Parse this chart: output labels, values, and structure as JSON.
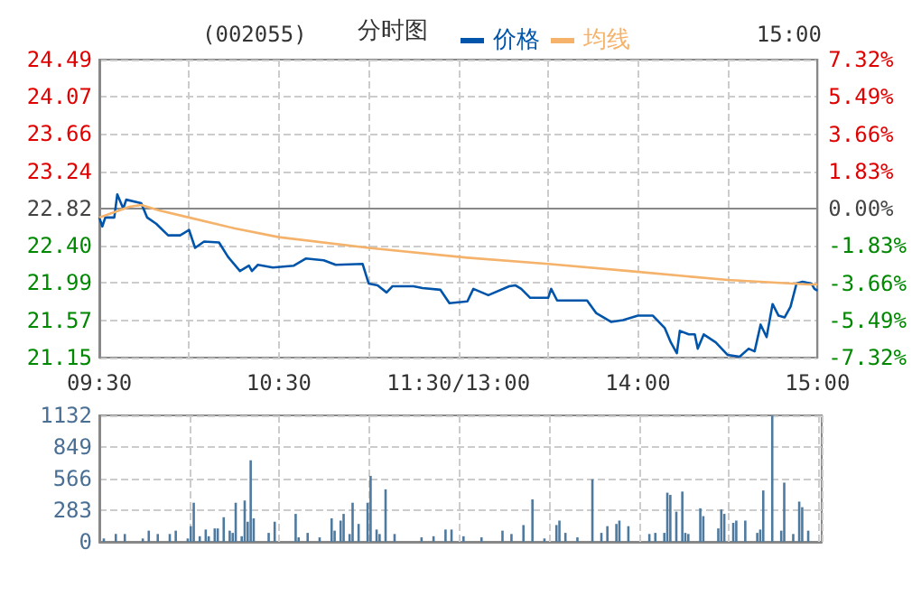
{
  "chart_data": [
    {
      "type": "line",
      "title": "分时图",
      "annotations": [
        "(002055)",
        "15:00"
      ],
      "legend": "top",
      "grid": true,
      "line_style": "solid",
      "marker": "none",
      "categories": [
        "09:30",
        null,
        null,
        null,
        null,
        null,
        null,
        null,
        null,
        null,
        null,
        null,
        null,
        null,
        null,
        null,
        null,
        null,
        null,
        null,
        null,
        null,
        null,
        null,
        null,
        null,
        null,
        null,
        null,
        null,
        null,
        null,
        null,
        null,
        null,
        null,
        null,
        null,
        null,
        null,
        null,
        null,
        null,
        null,
        null,
        null,
        null,
        null,
        null,
        null,
        null,
        null,
        null,
        null,
        null,
        null,
        null,
        null,
        null,
        null,
        "10:30",
        null,
        null,
        null,
        null,
        null,
        null,
        null,
        null,
        null,
        null,
        null,
        null,
        null,
        null,
        null,
        null,
        null,
        null,
        null,
        null,
        null,
        null,
        null,
        null,
        null,
        null,
        null,
        null,
        null,
        null,
        null,
        null,
        null,
        null,
        null,
        null,
        null,
        null,
        null,
        null,
        null,
        null,
        null,
        null,
        null,
        null,
        null,
        null,
        null,
        null,
        null,
        null,
        null,
        null,
        null,
        null,
        null,
        null,
        null,
        "11:30/13:00",
        null,
        null,
        null,
        null,
        null,
        null,
        null,
        null,
        null,
        null,
        null,
        null,
        null,
        null,
        null,
        null,
        null,
        null,
        null,
        null,
        null,
        null,
        null,
        null,
        null,
        null,
        null,
        null,
        null,
        null,
        null,
        null,
        null,
        null,
        null,
        null,
        null,
        null,
        null,
        null,
        null,
        null,
        null,
        null,
        null,
        null,
        null,
        null,
        null,
        null,
        null,
        null,
        null,
        null,
        null,
        null,
        null,
        null,
        null,
        "14:00",
        null,
        null,
        null,
        null,
        null,
        null,
        null,
        null,
        null,
        null,
        null,
        null,
        null,
        null,
        null,
        null,
        null,
        null,
        null,
        null,
        null,
        null,
        null,
        null,
        null,
        null,
        null,
        null,
        null,
        null,
        null,
        null,
        null,
        null,
        null,
        null,
        null,
        null,
        null,
        null,
        null,
        null,
        null,
        null,
        null,
        null,
        null,
        null,
        null,
        null,
        null,
        null,
        null,
        null,
        null,
        null,
        null,
        null,
        null,
        "15:00"
      ],
      "ylim": [
        21.15,
        24.49
      ],
      "yticks": [
        21.15,
        21.57,
        21.99,
        {
          "value": 22.4,
          "label": "22.40"
        },
        22.82,
        23.24,
        23.66,
        24.07,
        24.49
      ],
      "y2lim": [
        -7.32,
        7.32
      ],
      "y2ticks": [
        {
          "value": -7.32,
          "label": "-7.32%"
        },
        {
          "value": -5.49,
          "label": "-5.49%"
        },
        {
          "value": -3.66,
          "label": "-3.66%"
        },
        {
          "value": -1.83,
          "label": "-1.83%"
        },
        {
          "value": 0,
          "label": "0.00%"
        },
        {
          "value": 1.83,
          "label": "1.83%"
        },
        {
          "value": 3.66,
          "label": "3.66%"
        },
        {
          "value": 5.49,
          "label": "5.49%"
        },
        {
          "value": 7.32,
          "label": "7.32%"
        }
      ],
      "series": [
        {
          "name": "价格",
          "color": "#0055aa",
          "values": [
            22.72,
            22.62,
            22.72,
            null,
            null,
            22.72,
            22.98,
            null,
            22.82,
            22.92,
            null,
            null,
            null,
            null,
            22.88,
            null,
            22.72,
            null,
            null,
            22.65,
            null,
            null,
            null,
            22.52,
            null,
            null,
            null,
            22.52,
            null,
            null,
            22.58,
            null,
            22.38,
            null,
            null,
            22.45,
            null,
            null,
            null,
            null,
            22.44,
            null,
            null,
            22.28,
            null,
            null,
            null,
            22.12,
            null,
            null,
            22.18,
            22.12,
            null,
            22.19,
            null,
            null,
            null,
            null,
            22.16,
            null,
            null,
            null,
            null,
            null,
            null,
            22.18,
            null,
            null,
            null,
            22.26,
            null,
            null,
            null,
            null,
            null,
            22.24,
            null,
            null,
            null,
            22.19,
            null,
            null,
            null,
            null,
            null,
            null,
            null,
            null,
            22.2,
            null,
            21.98,
            null,
            null,
            21.96,
            null,
            null,
            21.88,
            null,
            21.95,
            null,
            null,
            null,
            null,
            null,
            null,
            21.95,
            null,
            null,
            21.93,
            null,
            null,
            null,
            null,
            null,
            21.91,
            null,
            null,
            21.76,
            null,
            null,
            null,
            null,
            null,
            21.78,
            null,
            21.92,
            null,
            null,
            null,
            null,
            21.85,
            null,
            null,
            null,
            null,
            null,
            null,
            21.95,
            null,
            21.96,
            null,
            21.92,
            null,
            null,
            21.82,
            null,
            null,
            null,
            null,
            null,
            21.82,
            21.92,
            null,
            21.79,
            null,
            null,
            null,
            null,
            null,
            null,
            null,
            null,
            null,
            21.79,
            null,
            null,
            21.65,
            null,
            null,
            null,
            null,
            21.55,
            null,
            null,
            null,
            21.57,
            null,
            null,
            null,
            null,
            21.62,
            null,
            null,
            null,
            null,
            21.62,
            null,
            null,
            null,
            21.48,
            null,
            21.32,
            null,
            21.2,
            21.45,
            null,
            null,
            21.41,
            null,
            21.41,
            21.25,
            null,
            21.41,
            null,
            null,
            null,
            21.32,
            null,
            null,
            null,
            21.18,
            null,
            null,
            null,
            21.16,
            null,
            null,
            21.25,
            null,
            21.22,
            null,
            21.52,
            null,
            21.38,
            null,
            21.75,
            null,
            21.62,
            null,
            21.6,
            null,
            21.72,
            null,
            21.98,
            null,
            22.0,
            null,
            null,
            21.98,
            21.92,
            21.9
          ]
        },
        {
          "name": "均线",
          "color": "#f5b26b",
          "values": [
            22.72,
            null,
            null,
            null,
            null,
            22.78,
            null,
            null,
            null,
            null,
            22.84,
            null,
            null,
            null,
            22.86,
            null,
            null,
            null,
            null,
            null,
            22.8,
            null,
            null,
            null,
            null,
            null,
            null,
            null,
            null,
            null,
            22.72,
            null,
            null,
            null,
            null,
            null,
            null,
            null,
            null,
            null,
            null,
            null,
            null,
            null,
            null,
            22.6,
            null,
            null,
            null,
            null,
            null,
            null,
            null,
            null,
            null,
            null,
            null,
            null,
            null,
            null,
            22.5,
            null,
            null,
            null,
            null,
            null,
            null,
            null,
            null,
            null,
            null,
            null,
            null,
            null,
            null,
            null,
            null,
            null,
            null,
            null,
            null,
            null,
            null,
            null,
            null,
            null,
            null,
            null,
            null,
            null,
            22.38,
            null,
            null,
            null,
            null,
            null,
            null,
            null,
            null,
            null,
            null,
            null,
            null,
            null,
            null,
            null,
            null,
            null,
            null,
            null,
            null,
            null,
            null,
            null,
            null,
            null,
            null,
            null,
            null,
            null,
            null,
            null,
            null,
            22.27,
            null,
            null,
            null,
            null,
            null,
            null,
            null,
            null,
            null,
            null,
            null,
            null,
            null,
            null,
            null,
            null,
            null,
            null,
            null,
            null,
            null,
            null,
            null,
            null,
            null,
            null,
            22.2,
            null,
            null,
            null,
            null,
            null,
            null,
            null,
            null,
            null,
            null,
            null,
            null,
            null,
            null,
            null,
            null,
            null,
            null,
            null,
            null,
            null,
            null,
            null,
            null,
            null,
            null,
            22.12,
            null,
            null,
            null,
            null,
            null,
            null,
            null,
            null,
            null,
            null,
            null,
            null,
            null,
            null,
            null,
            null,
            null,
            null,
            null,
            null,
            null,
            null,
            null,
            null,
            null,
            null,
            null,
            null,
            null,
            null,
            null,
            null,
            22.02,
            null,
            null,
            null,
            null,
            null,
            null,
            null,
            null,
            null,
            null,
            null,
            null,
            null,
            null,
            null,
            null,
            null,
            null,
            null,
            null,
            null,
            null,
            null,
            null,
            null,
            null,
            21.97,
            null,
            null,
            21.97
          ]
        }
      ]
    },
    {
      "type": "bar",
      "grid": true,
      "tick_labels": "y",
      "color": "#4f7a9f",
      "categories": [
        null,
        null,
        null,
        null,
        null,
        null,
        null,
        null,
        null,
        null,
        null,
        null,
        null,
        null,
        null,
        null,
        null,
        null,
        null,
        null,
        null,
        null,
        null,
        null,
        null,
        null,
        null,
        null,
        null,
        null,
        null,
        null,
        null,
        null,
        null,
        null,
        null,
        null,
        null,
        null,
        null,
        null,
        null,
        null,
        null,
        null,
        null,
        null,
        null,
        null,
        null,
        null,
        null,
        null,
        null,
        null,
        null,
        null,
        null,
        null,
        null,
        null,
        null,
        null,
        null,
        null,
        null,
        null,
        null,
        null,
        null,
        null,
        null,
        null,
        null,
        null,
        null,
        null,
        null,
        null,
        null,
        null,
        null,
        null,
        null,
        null,
        null,
        null,
        null,
        null,
        null,
        null,
        null,
        null,
        null,
        null,
        null,
        null,
        null,
        null,
        null,
        null,
        null,
        null,
        null,
        null,
        null,
        null,
        null,
        null,
        null,
        null,
        null,
        null,
        null,
        null,
        null,
        null,
        null,
        null,
        null,
        null,
        null,
        null,
        null,
        null,
        null,
        null,
        null,
        null,
        null,
        null,
        null,
        null,
        null,
        null,
        null,
        null,
        null,
        null,
        null,
        null,
        null,
        null,
        null,
        null,
        null,
        null,
        null,
        null,
        null,
        null,
        null,
        null,
        null,
        null,
        null,
        null,
        null,
        null,
        null,
        null,
        null,
        null,
        null,
        null,
        null,
        null,
        null,
        null,
        null,
        null,
        null,
        null,
        null,
        null,
        null,
        null,
        null,
        null,
        null,
        null,
        null,
        null,
        null,
        null,
        null,
        null,
        null,
        null,
        null,
        null,
        null,
        null,
        null,
        null,
        null,
        null,
        null,
        null,
        null,
        null,
        null,
        null,
        null,
        null,
        null,
        null,
        null,
        null,
        null,
        null,
        null,
        null,
        null,
        null,
        null,
        null,
        null,
        null,
        null,
        null,
        null,
        null,
        null,
        null,
        null,
        null,
        null,
        null,
        null,
        null,
        null,
        null,
        null,
        null,
        null,
        null,
        null,
        null,
        null
      ],
      "ylim": [
        0,
        1132
      ],
      "yticks": [
        0,
        283,
        566,
        849,
        1132
      ],
      "values": [
        null,
        30,
        null,
        null,
        null,
        70,
        null,
        null,
        70,
        null,
        null,
        null,
        null,
        null,
        30,
        null,
        100,
        null,
        null,
        70,
        null,
        null,
        null,
        70,
        null,
        100,
        null,
        null,
        null,
        30,
        140,
        350,
        null,
        50,
        null,
        110,
        50,
        null,
        120,
        120,
        null,
        220,
        null,
        100,
        80,
        350,
        null,
        50,
        370,
        180,
        730,
        210,
        null,
        null,
        null,
        null,
        80,
        null,
        180,
        null,
        null,
        null,
        null,
        null,
        null,
        250,
        40,
        null,
        null,
        80,
        null,
        null,
        null,
        40,
        null,
        null,
        null,
        210,
        100,
        null,
        190,
        250,
        null,
        70,
        350,
        null,
        160,
        null,
        null,
        350,
        590,
        null,
        110,
        70,
        null,
        470,
        null,
        null,
        70,
        null,
        null,
        null,
        null,
        null,
        null,
        null,
        null,
        40,
        null,
        null,
        null,
        50,
        null,
        null,
        null,
        110,
        null,
        110,
        null,
        null,
        null,
        50,
        null,
        null,
        null,
        null,
        null,
        40,
        null,
        null,
        null,
        null,
        null,
        null,
        100,
        null,
        null,
        70,
        null,
        null,
        null,
        150,
        null,
        null,
        380,
        null,
        null,
        null,
        30,
        null,
        null,
        null,
        150,
        190,
        null,
        80,
        null,
        null,
        null,
        40,
        null,
        null,
        null,
        null,
        560,
        null,
        null,
        80,
        null,
        140,
        null,
        null,
        160,
        190,
        null,
        null,
        140,
        null,
        null,
        null,
        null,
        null,
        null,
        70,
        null,
        80,
        null,
        null,
        80,
        440,
        420,
        null,
        270,
        null,
        450,
        80,
        70,
        null,
        null,
        null,
        300,
        230,
        null,
        null,
        null,
        null,
        120,
        290,
        250,
        null,
        null,
        170,
        190,
        null,
        null,
        190,
        null,
        null,
        null,
        80,
        110,
        460,
        null,
        null,
        1130,
        null,
        null,
        100,
        530,
        null,
        null,
        70,
        null,
        360,
        310,
        null,
        100,
        null,
        null,
        null,
        null
      ]
    }
  ]
}
